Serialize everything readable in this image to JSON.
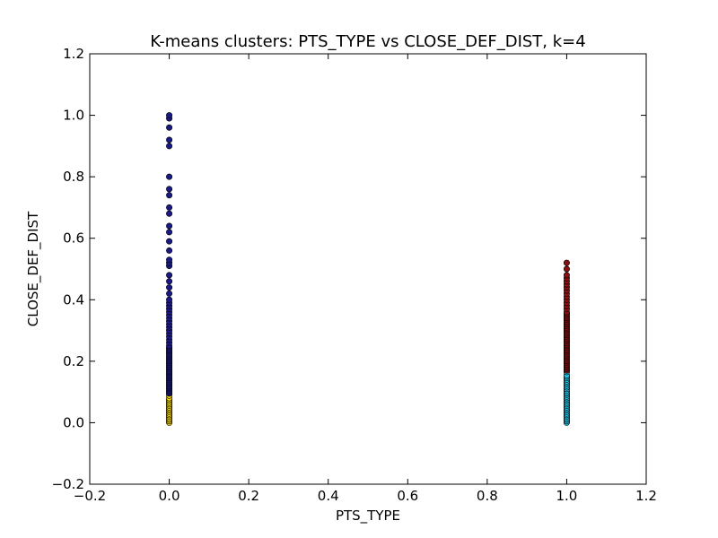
{
  "chart_data": {
    "type": "scatter",
    "title": "K-means clusters: PTS_TYPE vs CLOSE_DEF_DIST, k=4",
    "xlabel": "PTS_TYPE",
    "ylabel": "CLOSE_DEF_DIST",
    "xlim": [
      -0.2,
      1.2
    ],
    "ylim": [
      -0.2,
      1.2
    ],
    "xticks": [
      -0.2,
      0.0,
      0.2,
      0.4,
      0.6,
      0.8,
      1.0,
      1.2
    ],
    "yticks": [
      -0.2,
      0.0,
      0.2,
      0.4,
      0.6,
      0.8,
      1.0,
      1.2
    ],
    "xtick_labels": [
      "−0.2",
      "0.0",
      "0.2",
      "0.4",
      "0.6",
      "0.8",
      "1.0",
      "1.2"
    ],
    "ytick_labels": [
      "−0.2",
      "0.0",
      "0.2",
      "0.4",
      "0.6",
      "0.8",
      "1.0",
      "1.2"
    ],
    "grid": false,
    "series": [
      {
        "color": "#ffdd00",
        "x": [
          0,
          0,
          0,
          0,
          0,
          0,
          0,
          0,
          0,
          0,
          0,
          0,
          0,
          0,
          0,
          0,
          0,
          0
        ],
        "y": [
          0.0,
          0.005,
          0.01,
          0.015,
          0.02,
          0.025,
          0.03,
          0.035,
          0.04,
          0.045,
          0.05,
          0.055,
          0.06,
          0.065,
          0.07,
          0.075,
          0.08,
          0.088
        ]
      },
      {
        "color": "#1a1a80",
        "x": [
          0,
          0,
          0,
          0,
          0,
          0,
          0,
          0,
          0,
          0,
          0,
          0,
          0,
          0,
          0,
          0,
          0,
          0,
          0,
          0,
          0,
          0,
          0,
          0,
          0,
          0,
          0,
          0,
          0,
          0,
          0,
          0,
          0,
          0,
          0,
          0,
          0,
          0,
          0,
          0,
          0,
          0,
          0,
          0,
          0,
          0,
          0,
          0,
          0,
          0,
          0,
          0,
          0,
          0,
          0,
          0,
          0,
          0,
          0,
          0,
          0,
          0,
          0,
          0,
          0,
          0,
          0,
          0
        ],
        "y": [
          0.095,
          0.1,
          0.105,
          0.11,
          0.115,
          0.12,
          0.125,
          0.13,
          0.135,
          0.14,
          0.145,
          0.15,
          0.155,
          0.16,
          0.165,
          0.17,
          0.175,
          0.18,
          0.185,
          0.19,
          0.195,
          0.2,
          0.205,
          0.21,
          0.215,
          0.22,
          0.225,
          0.23,
          0.235,
          0.24,
          0.245,
          0.25,
          0.26,
          0.27,
          0.28,
          0.29,
          0.3,
          0.31,
          0.32,
          0.33,
          0.34,
          0.35,
          0.36,
          0.37,
          0.38,
          0.39,
          0.4,
          0.42,
          0.44,
          0.46,
          0.48,
          0.51,
          0.52,
          0.53,
          0.56,
          0.59,
          0.62,
          0.64,
          0.68,
          0.7,
          0.74,
          0.76,
          0.8,
          0.9,
          0.92,
          0.96,
          0.99,
          1.0
        ]
      },
      {
        "color": "#1ec8f0",
        "x": [
          1,
          1,
          1,
          1,
          1,
          1,
          1,
          1,
          1,
          1,
          1,
          1,
          1,
          1,
          1,
          1,
          1,
          1,
          1,
          1,
          1,
          1,
          1,
          1,
          1,
          1,
          1,
          1,
          1,
          1,
          1,
          1,
          1
        ],
        "y": [
          0.0,
          0.005,
          0.01,
          0.015,
          0.02,
          0.025,
          0.03,
          0.035,
          0.04,
          0.045,
          0.05,
          0.055,
          0.06,
          0.065,
          0.07,
          0.075,
          0.08,
          0.085,
          0.09,
          0.095,
          0.1,
          0.105,
          0.11,
          0.115,
          0.12,
          0.125,
          0.13,
          0.135,
          0.14,
          0.145,
          0.15,
          0.155,
          0.165
        ]
      },
      {
        "color": "#8a0e12",
        "x": [
          1,
          1,
          1,
          1,
          1,
          1,
          1,
          1,
          1,
          1,
          1,
          1,
          1,
          1,
          1,
          1,
          1,
          1,
          1,
          1,
          1,
          1,
          1,
          1,
          1,
          1,
          1,
          1,
          1,
          1,
          1,
          1,
          1,
          1,
          1,
          1,
          1,
          1,
          1,
          1,
          1,
          1,
          1,
          1,
          1,
          1,
          1,
          1,
          1,
          1,
          1,
          1,
          1
        ],
        "y": [
          0.17,
          0.175,
          0.18,
          0.185,
          0.19,
          0.195,
          0.2,
          0.205,
          0.21,
          0.215,
          0.22,
          0.225,
          0.23,
          0.235,
          0.24,
          0.245,
          0.25,
          0.255,
          0.26,
          0.265,
          0.27,
          0.275,
          0.28,
          0.285,
          0.29,
          0.295,
          0.3,
          0.305,
          0.31,
          0.315,
          0.32,
          0.325,
          0.33,
          0.335,
          0.34,
          0.345,
          0.35,
          0.355,
          0.36,
          0.37,
          0.38,
          0.39,
          0.4,
          0.41,
          0.42,
          0.43,
          0.44,
          0.45,
          0.46,
          0.47,
          0.48,
          0.5,
          0.52
        ]
      }
    ]
  }
}
